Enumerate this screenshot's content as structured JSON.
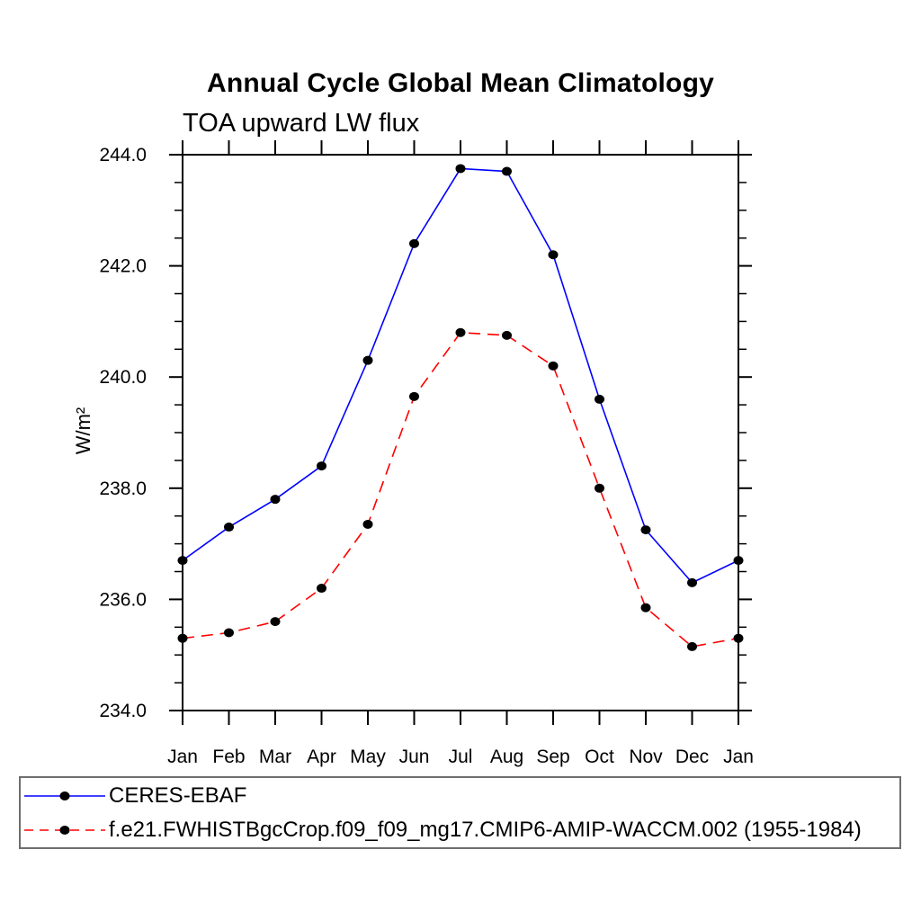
{
  "chart_data": {
    "type": "line",
    "title": "Annual Cycle Global Mean Climatology",
    "subtitle": "TOA upward LW flux",
    "ylabel": "W/m²",
    "x_categories": [
      "Jan",
      "Feb",
      "Mar",
      "Apr",
      "May",
      "Jun",
      "Jul",
      "Aug",
      "Sep",
      "Oct",
      "Nov",
      "Dec",
      "Jan"
    ],
    "ylim": [
      234.0,
      244.0
    ],
    "y_major_tick_step": 2.0,
    "y_minor_tick_step": 0.5,
    "y_tick_labels": [
      "234.0",
      "236.0",
      "238.0",
      "240.0",
      "242.0",
      "244.0"
    ],
    "grid": false,
    "legend_position": "bottom-box",
    "axis_color": "#000000",
    "marker_shape": "filled-circle",
    "series": [
      {
        "name": "CERES-EBAF",
        "color": "#0000ff",
        "line_style": "solid",
        "marker_color": "#000000",
        "values": [
          236.7,
          237.3,
          237.8,
          238.4,
          240.3,
          242.4,
          243.75,
          243.7,
          242.2,
          239.6,
          237.25,
          236.3,
          236.7
        ]
      },
      {
        "name": "f.e21.FWHISTBgcCrop.f09_f09_mg17.CMIP6-AMIP-WACCM.002 (1955-1984)",
        "color": "#ff0000",
        "line_style": "dashed",
        "marker_color": "#000000",
        "values": [
          235.3,
          235.4,
          235.6,
          236.2,
          237.35,
          239.65,
          240.8,
          240.75,
          240.2,
          238.0,
          235.85,
          235.15,
          235.3
        ]
      }
    ]
  }
}
